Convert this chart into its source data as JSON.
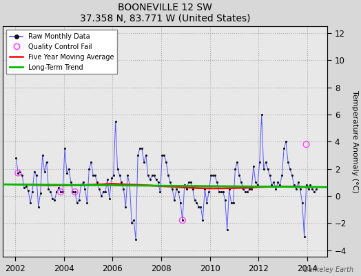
{
  "title": "BOONEVILLE 12 SW",
  "subtitle": "37.358 N, 83.771 W (United States)",
  "ylabel": "Temperature Anomaly (°C)",
  "watermark": "Berkeley Earth",
  "xlim": [
    2001.5,
    2014.83
  ],
  "ylim": [
    -4.5,
    12.5
  ],
  "yticks": [
    -4,
    -2,
    0,
    2,
    4,
    6,
    8,
    10,
    12
  ],
  "xticks": [
    2002,
    2004,
    2006,
    2008,
    2010,
    2012,
    2014
  ],
  "background_color": "#d8d8d8",
  "plot_background": "#e8e8e8",
  "raw_data": [
    [
      2002.042,
      2.8
    ],
    [
      2002.125,
      1.7
    ],
    [
      2002.208,
      1.8
    ],
    [
      2002.292,
      1.5
    ],
    [
      2002.375,
      0.6
    ],
    [
      2002.458,
      0.7
    ],
    [
      2002.542,
      0.4
    ],
    [
      2002.625,
      -0.5
    ],
    [
      2002.708,
      0.3
    ],
    [
      2002.792,
      1.8
    ],
    [
      2002.875,
      1.5
    ],
    [
      2002.958,
      -0.8
    ],
    [
      2003.042,
      0.2
    ],
    [
      2003.125,
      3.0
    ],
    [
      2003.208,
      1.8
    ],
    [
      2003.292,
      2.5
    ],
    [
      2003.375,
      0.5
    ],
    [
      2003.458,
      0.3
    ],
    [
      2003.542,
      -0.2
    ],
    [
      2003.625,
      -0.3
    ],
    [
      2003.708,
      0.3
    ],
    [
      2003.792,
      0.6
    ],
    [
      2003.875,
      0.3
    ],
    [
      2003.958,
      0.3
    ],
    [
      2004.042,
      3.5
    ],
    [
      2004.125,
      1.7
    ],
    [
      2004.208,
      2.0
    ],
    [
      2004.292,
      1.0
    ],
    [
      2004.375,
      0.3
    ],
    [
      2004.458,
      0.3
    ],
    [
      2004.542,
      -0.5
    ],
    [
      2004.625,
      -0.3
    ],
    [
      2004.708,
      0.8
    ],
    [
      2004.792,
      1.0
    ],
    [
      2004.875,
      0.5
    ],
    [
      2004.958,
      -0.5
    ],
    [
      2005.042,
      2.0
    ],
    [
      2005.125,
      2.5
    ],
    [
      2005.208,
      1.5
    ],
    [
      2005.292,
      1.5
    ],
    [
      2005.375,
      1.0
    ],
    [
      2005.458,
      0.5
    ],
    [
      2005.542,
      0.0
    ],
    [
      2005.625,
      0.3
    ],
    [
      2005.708,
      0.3
    ],
    [
      2005.792,
      1.2
    ],
    [
      2005.875,
      -0.2
    ],
    [
      2005.958,
      1.3
    ],
    [
      2006.042,
      1.5
    ],
    [
      2006.125,
      5.5
    ],
    [
      2006.208,
      2.0
    ],
    [
      2006.292,
      1.5
    ],
    [
      2006.375,
      1.0
    ],
    [
      2006.458,
      0.5
    ],
    [
      2006.542,
      -0.8
    ],
    [
      2006.625,
      1.5
    ],
    [
      2006.708,
      0.8
    ],
    [
      2006.792,
      -2.0
    ],
    [
      2006.875,
      -1.8
    ],
    [
      2006.958,
      -3.2
    ],
    [
      2007.042,
      3.0
    ],
    [
      2007.125,
      3.5
    ],
    [
      2007.208,
      3.5
    ],
    [
      2007.292,
      2.5
    ],
    [
      2007.375,
      3.0
    ],
    [
      2007.458,
      1.5
    ],
    [
      2007.542,
      1.2
    ],
    [
      2007.625,
      1.5
    ],
    [
      2007.708,
      1.5
    ],
    [
      2007.792,
      1.2
    ],
    [
      2007.875,
      1.0
    ],
    [
      2007.958,
      0.3
    ],
    [
      2008.042,
      3.0
    ],
    [
      2008.125,
      3.0
    ],
    [
      2008.208,
      2.5
    ],
    [
      2008.292,
      1.5
    ],
    [
      2008.375,
      1.0
    ],
    [
      2008.458,
      0.5
    ],
    [
      2008.542,
      -0.3
    ],
    [
      2008.625,
      0.5
    ],
    [
      2008.708,
      0.3
    ],
    [
      2008.792,
      -0.5
    ],
    [
      2008.875,
      -1.8
    ],
    [
      2008.958,
      0.8
    ],
    [
      2009.042,
      0.5
    ],
    [
      2009.125,
      1.0
    ],
    [
      2009.208,
      1.0
    ],
    [
      2009.292,
      0.5
    ],
    [
      2009.375,
      -0.3
    ],
    [
      2009.458,
      -0.5
    ],
    [
      2009.542,
      -0.8
    ],
    [
      2009.625,
      -0.8
    ],
    [
      2009.708,
      -1.8
    ],
    [
      2009.792,
      0.5
    ],
    [
      2009.875,
      -0.5
    ],
    [
      2009.958,
      0.3
    ],
    [
      2010.042,
      1.5
    ],
    [
      2010.125,
      1.5
    ],
    [
      2010.208,
      1.5
    ],
    [
      2010.292,
      1.0
    ],
    [
      2010.375,
      0.3
    ],
    [
      2010.458,
      0.3
    ],
    [
      2010.542,
      0.3
    ],
    [
      2010.625,
      -0.3
    ],
    [
      2010.708,
      -2.5
    ],
    [
      2010.792,
      0.5
    ],
    [
      2010.875,
      -0.5
    ],
    [
      2010.958,
      -0.5
    ],
    [
      2011.042,
      2.0
    ],
    [
      2011.125,
      2.5
    ],
    [
      2011.208,
      1.5
    ],
    [
      2011.292,
      1.0
    ],
    [
      2011.375,
      0.5
    ],
    [
      2011.458,
      0.3
    ],
    [
      2011.542,
      0.3
    ],
    [
      2011.625,
      0.5
    ],
    [
      2011.708,
      0.5
    ],
    [
      2011.792,
      2.2
    ],
    [
      2011.875,
      1.0
    ],
    [
      2011.958,
      0.8
    ],
    [
      2012.042,
      2.5
    ],
    [
      2012.125,
      6.0
    ],
    [
      2012.208,
      2.0
    ],
    [
      2012.292,
      2.5
    ],
    [
      2012.375,
      2.0
    ],
    [
      2012.458,
      1.5
    ],
    [
      2012.542,
      0.8
    ],
    [
      2012.625,
      1.0
    ],
    [
      2012.708,
      0.5
    ],
    [
      2012.792,
      1.0
    ],
    [
      2012.875,
      0.8
    ],
    [
      2012.958,
      1.5
    ],
    [
      2013.042,
      3.5
    ],
    [
      2013.125,
      4.0
    ],
    [
      2013.208,
      2.5
    ],
    [
      2013.292,
      2.0
    ],
    [
      2013.375,
      1.5
    ],
    [
      2013.458,
      0.8
    ],
    [
      2013.542,
      0.5
    ],
    [
      2013.625,
      1.0
    ],
    [
      2013.708,
      0.5
    ],
    [
      2013.792,
      -0.5
    ],
    [
      2013.875,
      -3.0
    ],
    [
      2013.958,
      0.8
    ],
    [
      2014.042,
      0.5
    ],
    [
      2014.125,
      0.8
    ],
    [
      2014.208,
      0.5
    ],
    [
      2014.292,
      0.3
    ],
    [
      2014.375,
      0.5
    ]
  ],
  "qc_fail_points": [
    [
      2002.125,
      1.7
    ],
    [
      2003.875,
      0.3
    ],
    [
      2004.458,
      0.3
    ],
    [
      2008.875,
      -1.8
    ],
    [
      2013.958,
      3.8
    ]
  ],
  "moving_avg": [
    [
      2002.0,
      0.85
    ],
    [
      2002.5,
      0.82
    ],
    [
      2003.0,
      0.8
    ],
    [
      2003.5,
      0.78
    ],
    [
      2004.0,
      0.78
    ],
    [
      2004.5,
      0.8
    ],
    [
      2005.0,
      0.82
    ],
    [
      2005.5,
      0.85
    ],
    [
      2006.0,
      0.9
    ],
    [
      2006.5,
      0.85
    ],
    [
      2007.0,
      0.82
    ],
    [
      2007.5,
      0.78
    ],
    [
      2008.0,
      0.72
    ],
    [
      2008.5,
      0.68
    ],
    [
      2009.0,
      0.62
    ],
    [
      2009.5,
      0.58
    ],
    [
      2010.0,
      0.56
    ],
    [
      2010.5,
      0.56
    ],
    [
      2011.0,
      0.58
    ],
    [
      2011.5,
      0.6
    ],
    [
      2012.0,
      0.65
    ],
    [
      2012.5,
      0.68
    ],
    [
      2013.0,
      0.7
    ],
    [
      2013.5,
      0.68
    ],
    [
      2014.0,
      0.65
    ]
  ],
  "trend_x": [
    2001.5,
    2014.83
  ],
  "trend_y": [
    0.85,
    0.65
  ],
  "raw_line_color": "#5555ff",
  "raw_dot_color": "#111111",
  "moving_avg_color": "#ff0000",
  "trend_color": "#00bb00",
  "qc_color": "#ff44ff"
}
